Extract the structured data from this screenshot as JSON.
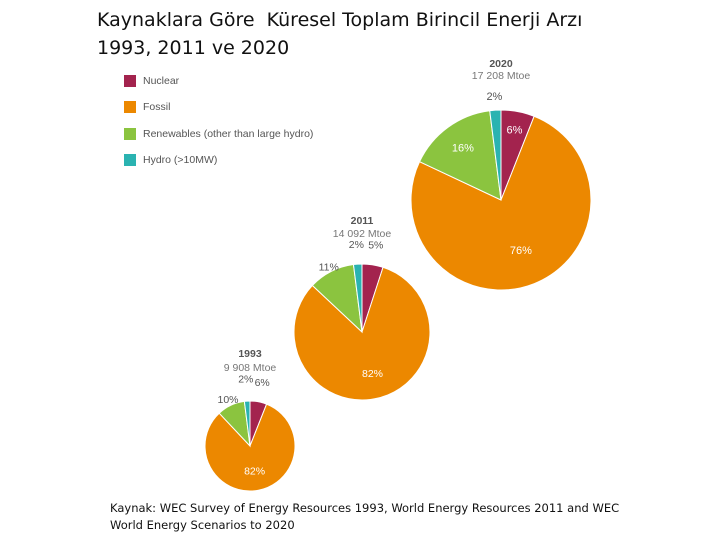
{
  "title": {
    "line1": "Kaynaklara Göre  Küresel Toplam Birincil Enerji Arzı",
    "line2": "1993, 2011 ve 2020"
  },
  "source": "Kaynak: WEC Survey of Energy Resources 1993, World Energy Resources 2011 and WEC World Energy Scenarios to 2020",
  "colors": {
    "Nuclear": "#a3234e",
    "Fossil": "#ec8800",
    "Renewables": "#8bc43f",
    "Hydro": "#2ab3b1"
  },
  "chart_data": {
    "type": "pie",
    "legend_position": "top-left",
    "legend": [
      "Nuclear",
      "Fossil",
      "Renewables (other than large hydro)",
      "Hydro (>10MW)"
    ],
    "categories": [
      "Nuclear",
      "Fossil",
      "Renewables",
      "Hydro"
    ],
    "pies": [
      {
        "year": "1993",
        "total": "9 908 Mtoe",
        "values": [
          6,
          82,
          10,
          2
        ],
        "labels": [
          "6%",
          "82%",
          "10%",
          "2%"
        ]
      },
      {
        "year": "2011",
        "total": "14 092 Mtoe",
        "values": [
          5,
          82,
          11,
          2
        ],
        "labels": [
          "5%",
          "82%",
          "11%",
          "2%"
        ]
      },
      {
        "year": "2020",
        "total": "17 208 Mtoe",
        "values": [
          6,
          76,
          16,
          2
        ],
        "labels": [
          "6%",
          "76%",
          "16%",
          "2%"
        ]
      }
    ]
  }
}
